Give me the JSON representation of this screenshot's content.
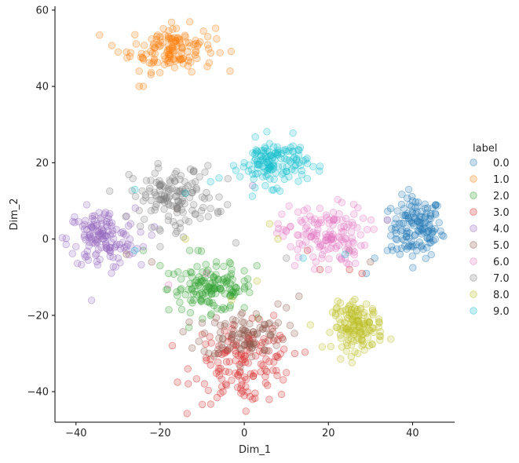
{
  "chart_data": {
    "type": "scatter",
    "title": "",
    "xlabel": "Dim_1",
    "ylabel": "Dim_2",
    "xlim": [
      -45,
      50
    ],
    "ylim": [
      -48,
      61
    ],
    "x_ticks": [
      -40,
      -20,
      0,
      20,
      40
    ],
    "y_ticks": [
      -40,
      -20,
      0,
      20,
      40,
      60
    ],
    "x_tick_labels": [
      "−40",
      "−20",
      "0",
      "20",
      "40"
    ],
    "y_tick_labels": [
      "−40",
      "−20",
      "0",
      "20",
      "40",
      "60"
    ],
    "legend_title": "label",
    "legend_position": "right",
    "grid": false,
    "series": [
      {
        "name": "0.0",
        "color": "#1f77b4",
        "cluster_center": [
          41,
          3
        ],
        "cluster_spread": [
          3,
          4
        ],
        "count": 130,
        "points": [
          [
            36,
            3
          ],
          [
            38,
            8
          ],
          [
            40,
            10
          ],
          [
            43,
            8
          ],
          [
            45,
            2
          ],
          [
            47,
            1
          ],
          [
            42,
            -2
          ],
          [
            39,
            -2
          ],
          [
            36,
            0
          ],
          [
            34,
            -3
          ],
          [
            31,
            -5
          ],
          [
            29,
            -9
          ],
          [
            34,
            5
          ],
          [
            37,
            -4
          ],
          [
            44,
            -1
          ],
          [
            35,
            -2
          ]
        ]
      },
      {
        "name": "1.0",
        "color": "#ff7f0e",
        "cluster_center": [
          -17,
          50
        ],
        "cluster_spread": [
          5,
          3
        ],
        "count": 130,
        "points": [
          [
            -28,
            49
          ],
          [
            -25,
            44
          ],
          [
            -24,
            40
          ],
          [
            -22,
            46
          ],
          [
            -19,
            48
          ],
          [
            -17,
            55
          ],
          [
            -14,
            53
          ],
          [
            -12,
            51
          ],
          [
            -20,
            53
          ],
          [
            -25,
            40
          ],
          [
            -30,
            49
          ],
          [
            -15,
            47
          ]
        ]
      },
      {
        "name": "2.0",
        "color": "#2ca02c",
        "cluster_center": [
          -8,
          -13
        ],
        "cluster_spread": [
          5,
          3
        ],
        "count": 130,
        "points": [
          [
            -18,
            -9
          ],
          [
            -15,
            -13
          ],
          [
            -12,
            -16
          ],
          [
            -10,
            -11
          ],
          [
            -7,
            -13
          ],
          [
            -4,
            -10
          ],
          [
            -2,
            -14
          ],
          [
            0,
            -11
          ],
          [
            -5,
            -18
          ],
          [
            -13,
            -3
          ],
          [
            -11,
            -3
          ],
          [
            -3,
            -8
          ],
          [
            3,
            -7
          ],
          [
            -8,
            -20
          ],
          [
            0,
            -18
          ],
          [
            -24,
            -3
          ],
          [
            -20,
            -7
          ]
        ]
      },
      {
        "name": "3.0",
        "color": "#d62728",
        "cluster_center": [
          0,
          -33
        ],
        "cluster_spread": [
          6,
          5
        ],
        "count": 130,
        "points": [
          [
            -6,
            -28
          ],
          [
            -3,
            -37
          ],
          [
            0,
            -41
          ],
          [
            2,
            -42
          ],
          [
            5,
            -36
          ],
          [
            8,
            -31
          ],
          [
            4,
            -28
          ],
          [
            -8,
            -33
          ],
          [
            -10,
            -25
          ],
          [
            10,
            -35
          ],
          [
            12,
            -30
          ],
          [
            -2,
            -30
          ],
          [
            15,
            -3
          ],
          [
            18,
            -8
          ],
          [
            25,
            -8
          ],
          [
            28,
            -9
          ],
          [
            7,
            -20
          ]
        ]
      },
      {
        "name": "4.0",
        "color": "#9467bd",
        "cluster_center": [
          -34,
          0
        ],
        "cluster_spread": [
          4,
          4
        ],
        "count": 130,
        "points": [
          [
            -40,
            -2
          ],
          [
            -38,
            -4
          ],
          [
            -36,
            3
          ],
          [
            -34,
            5
          ],
          [
            -32,
            -3
          ],
          [
            -30,
            -5
          ],
          [
            -28,
            -2
          ],
          [
            -28,
            6
          ],
          [
            -27,
            4
          ],
          [
            -36,
            -1
          ],
          [
            -24,
            -2
          ],
          [
            -22,
            1
          ],
          [
            -33,
            7
          ],
          [
            -38,
            1
          ],
          [
            2,
            14
          ]
        ]
      },
      {
        "name": "5.0",
        "color": "#8c564b",
        "cluster_center": [
          0,
          -25
        ],
        "cluster_spread": [
          5,
          3
        ],
        "count": 90,
        "points": [
          [
            -10,
            -22
          ],
          [
            -6,
            -26
          ],
          [
            -3,
            -25
          ],
          [
            0,
            -24
          ],
          [
            3,
            -25
          ],
          [
            5,
            -27
          ],
          [
            -7,
            -30
          ],
          [
            6,
            -22
          ],
          [
            8,
            -17
          ],
          [
            10,
            -18
          ],
          [
            13,
            -15
          ],
          [
            -28,
            -4
          ],
          [
            -16,
            8
          ],
          [
            25,
            -3
          ],
          [
            30,
            -6
          ],
          [
            -22,
            -6
          ]
        ]
      },
      {
        "name": "6.0",
        "color": "#e377c2",
        "cluster_center": [
          19,
          1
        ],
        "cluster_spread": [
          5,
          4
        ],
        "count": 130,
        "points": [
          [
            8,
            4
          ],
          [
            11,
            -2
          ],
          [
            14,
            1
          ],
          [
            16,
            5
          ],
          [
            19,
            -3
          ],
          [
            21,
            -1
          ],
          [
            23,
            3
          ],
          [
            24,
            -5
          ],
          [
            20,
            -8
          ],
          [
            17,
            -6
          ],
          [
            12,
            -7
          ],
          [
            26,
            -1
          ],
          [
            10,
            2
          ],
          [
            22,
            5
          ],
          [
            34,
            5
          ],
          [
            -9,
            -9
          ],
          [
            -18,
            -12
          ]
        ]
      },
      {
        "name": "7.0",
        "color": "#7f7f7f",
        "cluster_center": [
          -17,
          11
        ],
        "cluster_spread": [
          5,
          4
        ],
        "count": 130,
        "points": [
          [
            -24,
            10
          ],
          [
            -20,
            14
          ],
          [
            -17,
            16
          ],
          [
            -14,
            12
          ],
          [
            -12,
            9
          ],
          [
            -10,
            11
          ],
          [
            -8,
            8
          ],
          [
            -18,
            6
          ],
          [
            -22,
            3
          ],
          [
            -16,
            2
          ],
          [
            -6,
            11
          ],
          [
            -4,
            9
          ],
          [
            -20,
            -2
          ],
          [
            -14,
            5
          ],
          [
            -12,
            18
          ],
          [
            -2,
            -1
          ],
          [
            10,
            -5
          ]
        ]
      },
      {
        "name": "8.0",
        "color": "#bcbd22",
        "cluster_center": [
          27,
          -23
        ],
        "cluster_spread": [
          3,
          3
        ],
        "count": 130,
        "points": [
          [
            22,
            -18
          ],
          [
            24,
            -22
          ],
          [
            26,
            -25
          ],
          [
            28,
            -28
          ],
          [
            30,
            -24
          ],
          [
            32,
            -21
          ],
          [
            29,
            -17
          ],
          [
            25,
            -20
          ],
          [
            27,
            -30
          ],
          [
            23,
            -26
          ],
          [
            6,
            4
          ],
          [
            8,
            0
          ],
          [
            3,
            -11
          ],
          [
            -3,
            -16
          ],
          [
            -14,
            0
          ]
        ]
      },
      {
        "name": "9.0",
        "color": "#17becf",
        "cluster_center": [
          7,
          20
        ],
        "cluster_spread": [
          4,
          3
        ],
        "count": 130,
        "points": [
          [
            0,
            20
          ],
          [
            3,
            23
          ],
          [
            6,
            25
          ],
          [
            8,
            22
          ],
          [
            11,
            24
          ],
          [
            13,
            20
          ],
          [
            9,
            17
          ],
          [
            5,
            14
          ],
          [
            2,
            17
          ],
          [
            -2,
            18
          ],
          [
            12,
            18
          ],
          [
            7,
            19
          ],
          [
            -6,
            16
          ],
          [
            -8,
            15
          ],
          [
            -14,
            12
          ],
          [
            -26,
            13
          ],
          [
            24,
            -4
          ],
          [
            14,
            -5
          ],
          [
            -26,
            -3
          ]
        ]
      }
    ]
  }
}
